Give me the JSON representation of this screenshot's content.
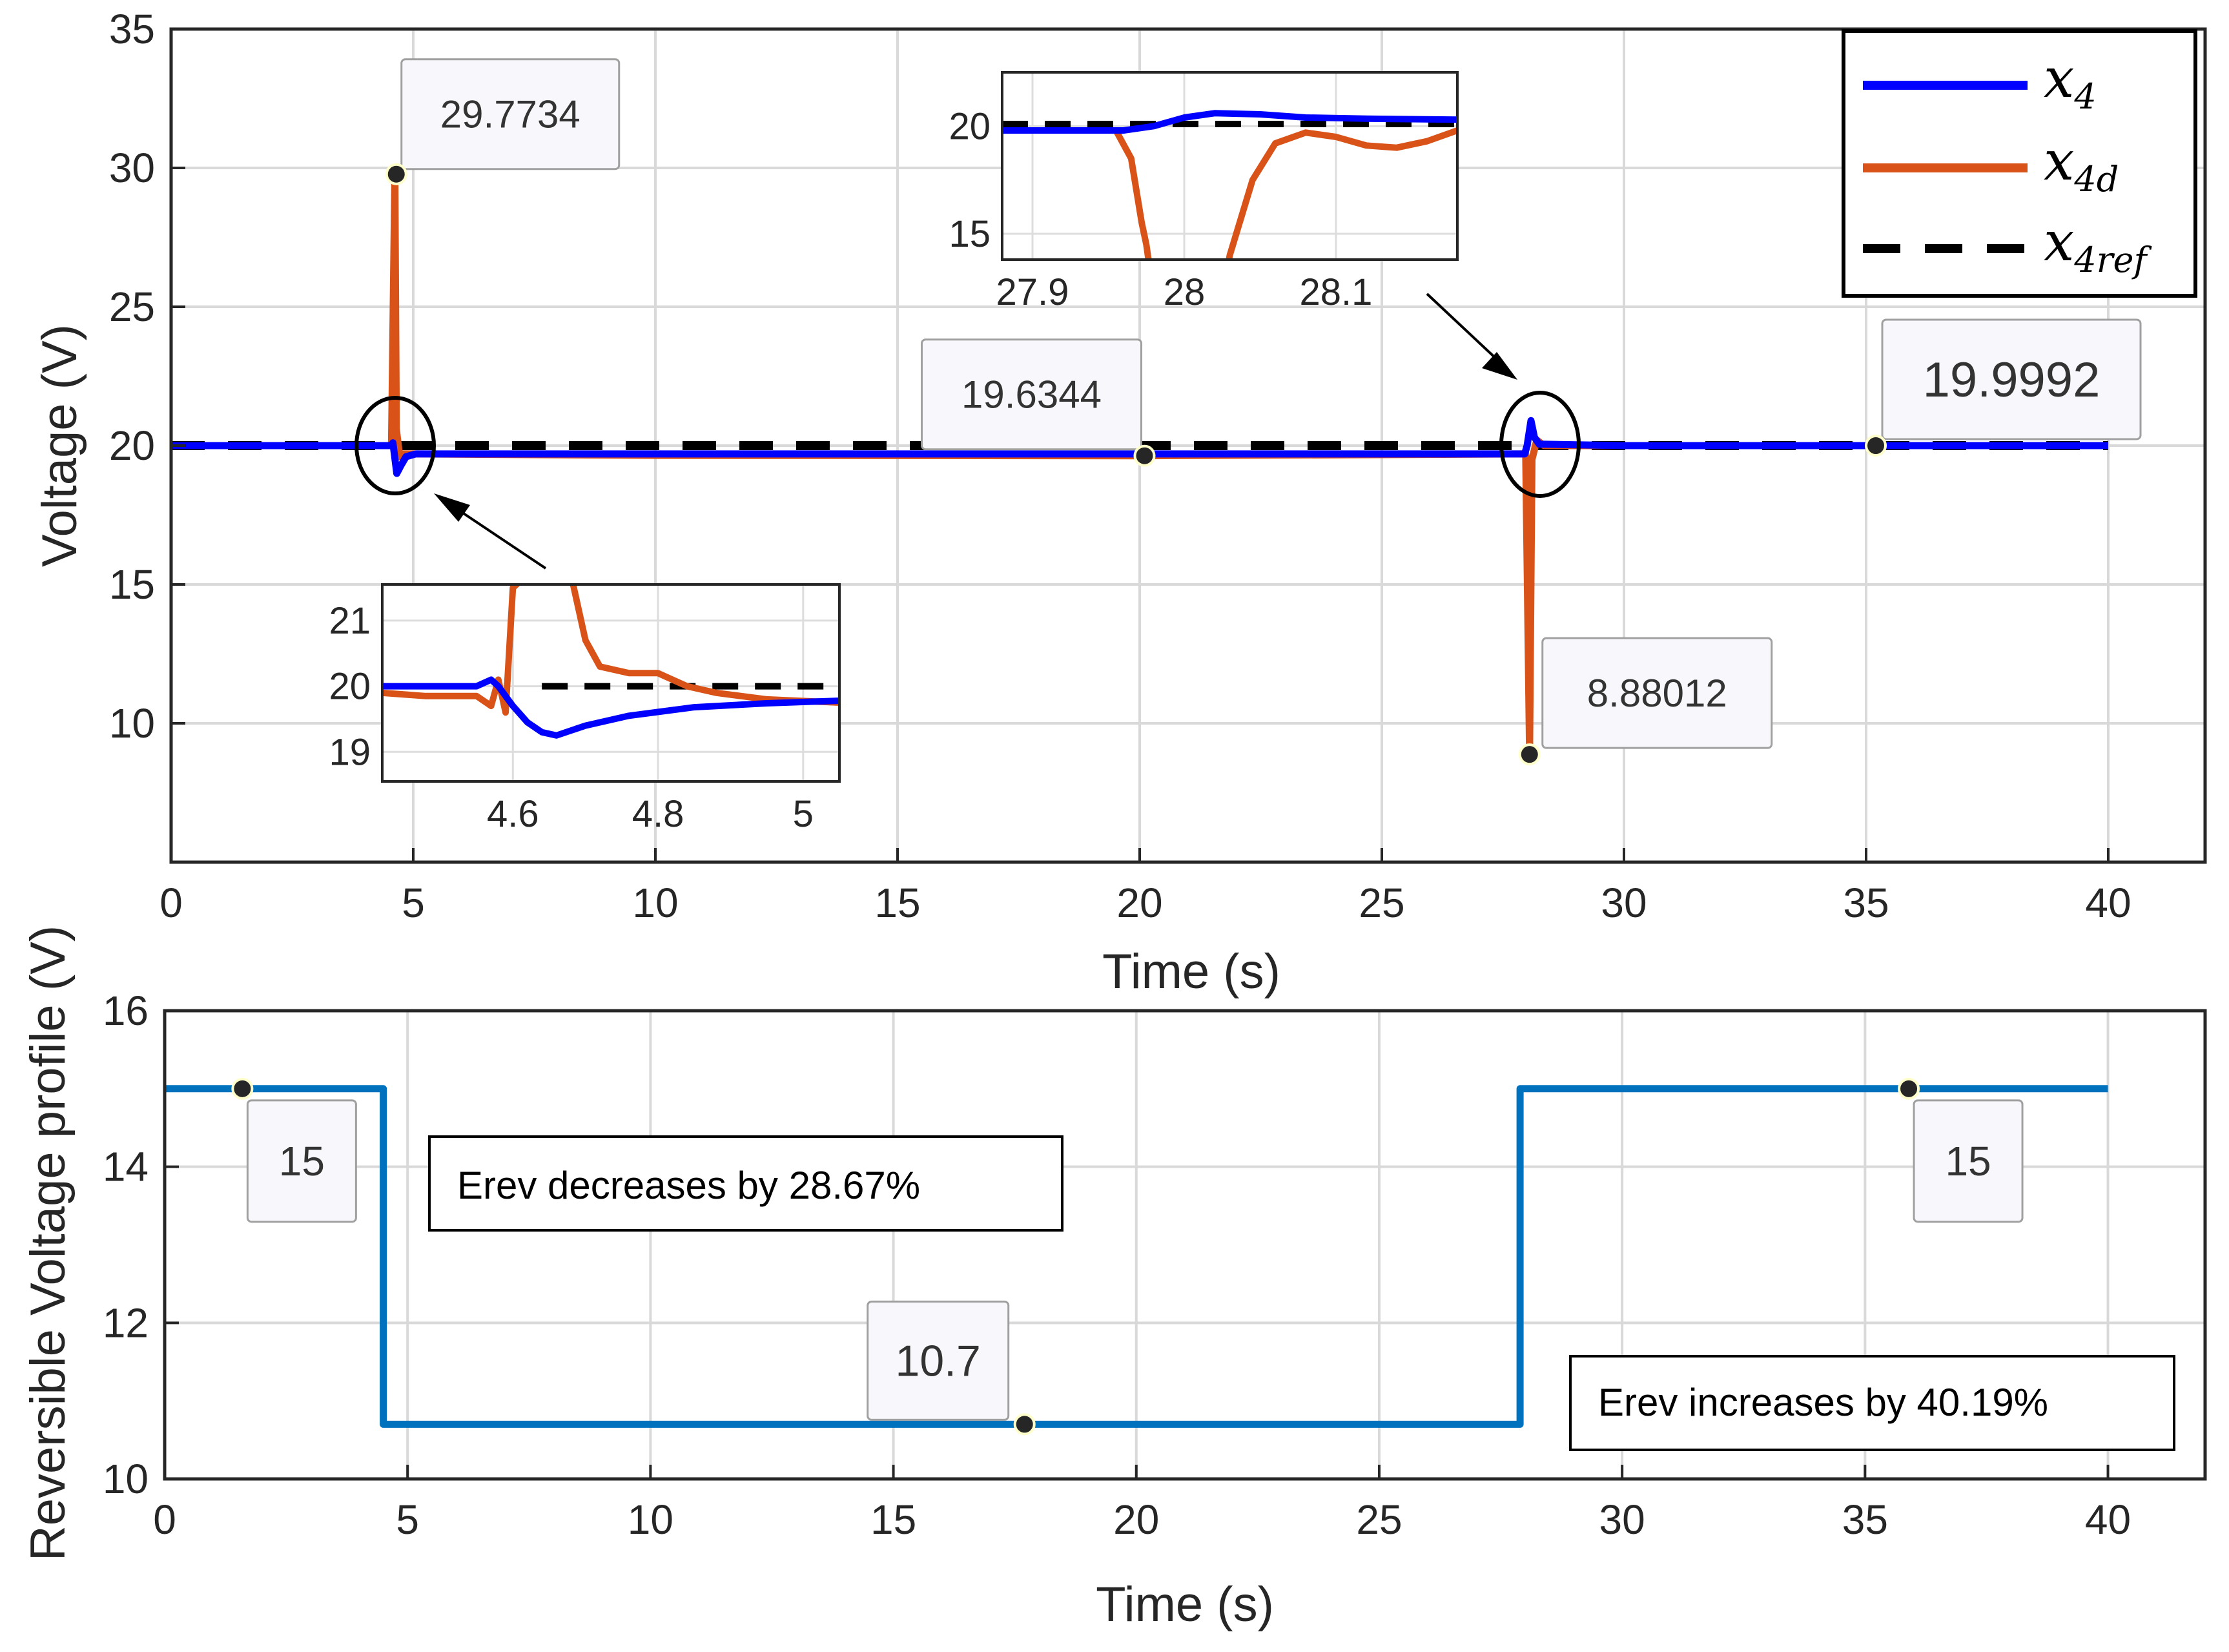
{
  "chart_data": [
    {
      "id": "top",
      "type": "line",
      "xlabel": "Time (s)",
      "ylabel": "Voltage (V)",
      "xlim": [
        0,
        42
      ],
      "ylim": [
        5,
        35
      ],
      "xticks": [
        0,
        5,
        10,
        15,
        20,
        25,
        30,
        35,
        40
      ],
      "yticks": [
        10,
        15,
        20,
        25,
        30,
        35
      ],
      "grid": true,
      "legend": {
        "placement": "top-right",
        "entries": [
          {
            "name": "x",
            "sub": "4",
            "color": "#0000ff",
            "style": "solid"
          },
          {
            "name": "x",
            "sub": "4d",
            "color": "#d95319",
            "style": "solid"
          },
          {
            "name": "x",
            "sub": "4ref",
            "color": "#000000",
            "style": "dashed"
          }
        ]
      },
      "series": [
        {
          "name": "x4ref",
          "color": "#000000",
          "style": "dashed",
          "x": [
            0,
            40
          ],
          "y": [
            20,
            20
          ]
        },
        {
          "name": "x4d",
          "color": "#d95319",
          "style": "solid",
          "x": [
            0,
            4.55,
            4.62,
            4.65,
            4.72,
            4.78,
            5.0,
            10,
            20,
            27.9,
            27.97,
            28.05,
            28.1,
            28.2,
            28.35,
            30,
            40
          ],
          "y": [
            20,
            20,
            29.7734,
            20.6,
            19.6,
            19.7,
            19.7,
            19.65,
            19.6344,
            19.7,
            19.7,
            8.88012,
            19.5,
            20.2,
            20,
            20,
            20
          ]
        },
        {
          "name": "x4",
          "color": "#0000ff",
          "style": "solid",
          "x": [
            0,
            4.55,
            4.58,
            4.66,
            4.75,
            4.85,
            5.05,
            10,
            20,
            27.95,
            28.0,
            28.08,
            28.15,
            28.25,
            30,
            40
          ],
          "y": [
            20,
            20,
            20.1,
            19.0,
            19.3,
            19.6,
            19.7,
            19.7,
            19.7,
            19.7,
            20.0,
            20.9,
            20.3,
            20.05,
            20,
            20
          ]
        }
      ],
      "datatips": [
        {
          "x": 4.65,
          "y": 29.7734,
          "label": "29.7734"
        },
        {
          "x": 20.1,
          "y": 19.6344,
          "label": "19.6344"
        },
        {
          "x": 28.05,
          "y": 8.88012,
          "label": "8.88012"
        },
        {
          "x": 35.2,
          "y": 20,
          "label": "19.9992"
        }
      ],
      "insets": [
        {
          "id": "inset-a",
          "xlim": [
            4.42,
            5.05
          ],
          "ylim": [
            18.55,
            21.55
          ],
          "xticks": [
            4.6,
            4.8,
            5
          ],
          "xticklabels": [
            "4.6",
            "4.8",
            "5"
          ],
          "yticks": [
            19,
            20,
            21
          ],
          "yticklabels": [
            "19",
            "20",
            "21"
          ],
          "series": [
            {
              "name": "x4ref",
              "color": "#000000",
              "style": "dashed",
              "x": [
                4.64,
                5.05
              ],
              "y": [
                20,
                20
              ]
            },
            {
              "name": "x4d",
              "color": "#d95319",
              "style": "solid",
              "x": [
                4.42,
                4.48,
                4.55,
                4.57,
                4.58,
                4.59,
                4.6,
                4.62,
                4.68,
                4.7,
                4.72,
                4.76,
                4.8,
                4.84,
                4.88,
                4.95,
                5.05
              ],
              "y": [
                19.9,
                19.85,
                19.85,
                19.7,
                20.1,
                19.6,
                21.5,
                21.7,
                21.7,
                20.7,
                20.3,
                20.2,
                20.2,
                20.0,
                19.9,
                19.8,
                19.75
              ]
            },
            {
              "name": "x4",
              "color": "#0000ff",
              "style": "solid",
              "x": [
                4.42,
                4.5,
                4.55,
                4.57,
                4.58,
                4.6,
                4.62,
                4.64,
                4.66,
                4.7,
                4.76,
                4.85,
                4.95,
                5.05
              ],
              "y": [
                20.0,
                20.0,
                20.0,
                20.1,
                20.0,
                19.7,
                19.45,
                19.3,
                19.25,
                19.4,
                19.55,
                19.68,
                19.74,
                19.78
              ]
            }
          ]
        },
        {
          "id": "inset-b",
          "xlim": [
            27.88,
            28.18
          ],
          "ylim": [
            13.8,
            22.5
          ],
          "xticks": [
            27.9,
            28,
            28.1
          ],
          "xticklabels": [
            "27.9",
            "28",
            "28.1"
          ],
          "yticks": [
            15,
            20
          ],
          "yticklabels": [
            "15",
            "20"
          ],
          "series": [
            {
              "name": "x4ref",
              "color": "#000000",
              "style": "dashed",
              "x": [
                27.88,
                28.18
              ],
              "y": [
                20.1,
                20.1
              ]
            },
            {
              "name": "x4d",
              "color": "#d95319",
              "style": "solid",
              "x": [
                27.88,
                27.955,
                27.965,
                27.972,
                27.975,
                27.98
              ],
              "y": [
                19.8,
                19.8,
                18.5,
                15.5,
                14.5,
                12.0
              ],
              "x2": [
                28.025,
                28.03,
                28.045,
                28.06,
                28.08,
                28.1,
                28.12,
                28.14,
                28.16,
                28.18
              ],
              "y2": [
                12.0,
                14.0,
                17.5,
                19.2,
                19.7,
                19.5,
                19.1,
                19.0,
                19.3,
                19.8
              ]
            },
            {
              "name": "x4",
              "color": "#0000ff",
              "style": "solid",
              "x": [
                27.88,
                27.96,
                27.98,
                28.0,
                28.02,
                28.05,
                28.08,
                28.12,
                28.18
              ],
              "y": [
                19.8,
                19.8,
                20.0,
                20.4,
                20.6,
                20.55,
                20.4,
                20.35,
                20.3
              ]
            }
          ]
        }
      ]
    },
    {
      "id": "bottom",
      "type": "line",
      "xlabel": "Time (s)",
      "ylabel": "Reversible Voltage profile (V)",
      "xlim": [
        0,
        42
      ],
      "ylim": [
        10,
        16
      ],
      "xticks": [
        0,
        5,
        10,
        15,
        20,
        25,
        30,
        35,
        40
      ],
      "yticks": [
        10,
        12,
        14,
        16
      ],
      "grid": true,
      "series": [
        {
          "name": "Erev",
          "color": "#0072bd",
          "style": "solid",
          "x": [
            0,
            4.5,
            4.5,
            27.9,
            27.9,
            40
          ],
          "y": [
            15,
            15,
            10.7,
            10.7,
            15,
            15
          ]
        }
      ],
      "datatips": [
        {
          "x": 1.6,
          "y": 15,
          "label": "15"
        },
        {
          "x": 17.7,
          "y": 10.7,
          "label": "10.7"
        },
        {
          "x": 35.9,
          "y": 15,
          "label": "15"
        }
      ],
      "annotations": [
        {
          "text": "Erev decreases by 28.67%"
        },
        {
          "text": "Erev increases by 40.19%"
        }
      ]
    }
  ]
}
